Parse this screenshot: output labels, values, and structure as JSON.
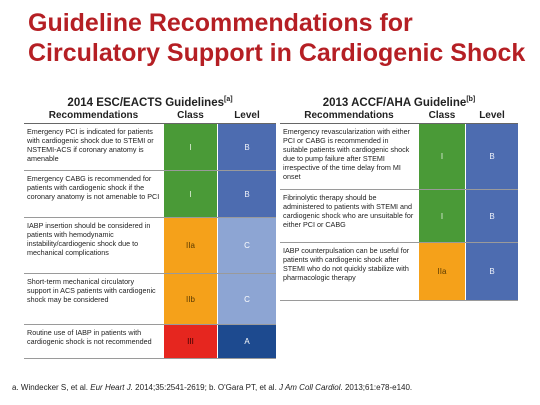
{
  "title": {
    "line1": "Guideline Recommendations for",
    "line2": "Circulatory Support in Cardiogenic Shock"
  },
  "colors": {
    "title_red": "#b51f24",
    "class_I_green": "#4a9a37",
    "class_IIa_orange": "#f5a11a",
    "class_IIb_orange": "#f5a11a",
    "class_III_red": "#e6261f",
    "level_A_darkblue": "#1d4a8f",
    "level_B_blue": "#4d6cb0",
    "level_C_lightblue": "#8da5d3"
  },
  "left": {
    "title": "2014 ESC/EACTS Guidelines",
    "ref": "[a]",
    "headers": {
      "rec": "Recommendations",
      "cls": "Class",
      "lvl": "Level"
    },
    "rows": [
      {
        "text": "Emergency PCI is indicated for patients with cardiogenic shock due to STEMI or NSTEMI-ACS if coronary anatomy is amenable",
        "cls": "I",
        "lvl": "B"
      },
      {
        "text": "Emergency CABG is recommended for patients with cardiogenic shock if the coronary anatomy is not amenable to PCI",
        "cls": "I",
        "lvl": "B"
      },
      {
        "text": "IABP insertion should be considered in patients with hemodynamic instability/cardiogenic shock due to mechanical complications",
        "cls": "IIa",
        "lvl": "C"
      },
      {
        "text": "Short-term mechanical circulatory support in ACS patients with cardiogenic shock may be considered",
        "cls": "IIb",
        "lvl": "C"
      },
      {
        "text": "Routine use of IABP in patients with cardiogenic shock is not recommended",
        "cls": "III",
        "lvl": "A"
      }
    ]
  },
  "right": {
    "title": "2013 ACCF/AHA Guideline",
    "ref": "[b]",
    "headers": {
      "rec": "Recommendations",
      "cls": "Class",
      "lvl": "Level"
    },
    "rows": [
      {
        "text": "Emergency revascularization with either PCI or CABG is recommended in suitable patients with cardiogenic shock due to pump failure after STEMI irrespective of the time delay from MI onset",
        "cls": "I",
        "lvl": "B"
      },
      {
        "text": "Fibrinolytic therapy should be administered to patients with STEMI and cardiogenic shock who are unsuitable for either PCI or CABG",
        "cls": "I",
        "lvl": "B"
      },
      {
        "text": "IABP counterpulsation can be useful for patients with cardiogenic shock after STEMI who do not quickly stabilize with pharmacologic therapy",
        "cls": "IIa",
        "lvl": "B"
      }
    ]
  },
  "footnote": {
    "a_prefix": "a. Windecker S, et al. ",
    "a_journal": "Eur Heart J.",
    "a_rest": " 2014;35:2541-2619; b. O'Gara PT, et al. ",
    "b_journal": "J Am Coll Cardiol",
    "b_rest": ". 2013;61:e78-e140."
  }
}
